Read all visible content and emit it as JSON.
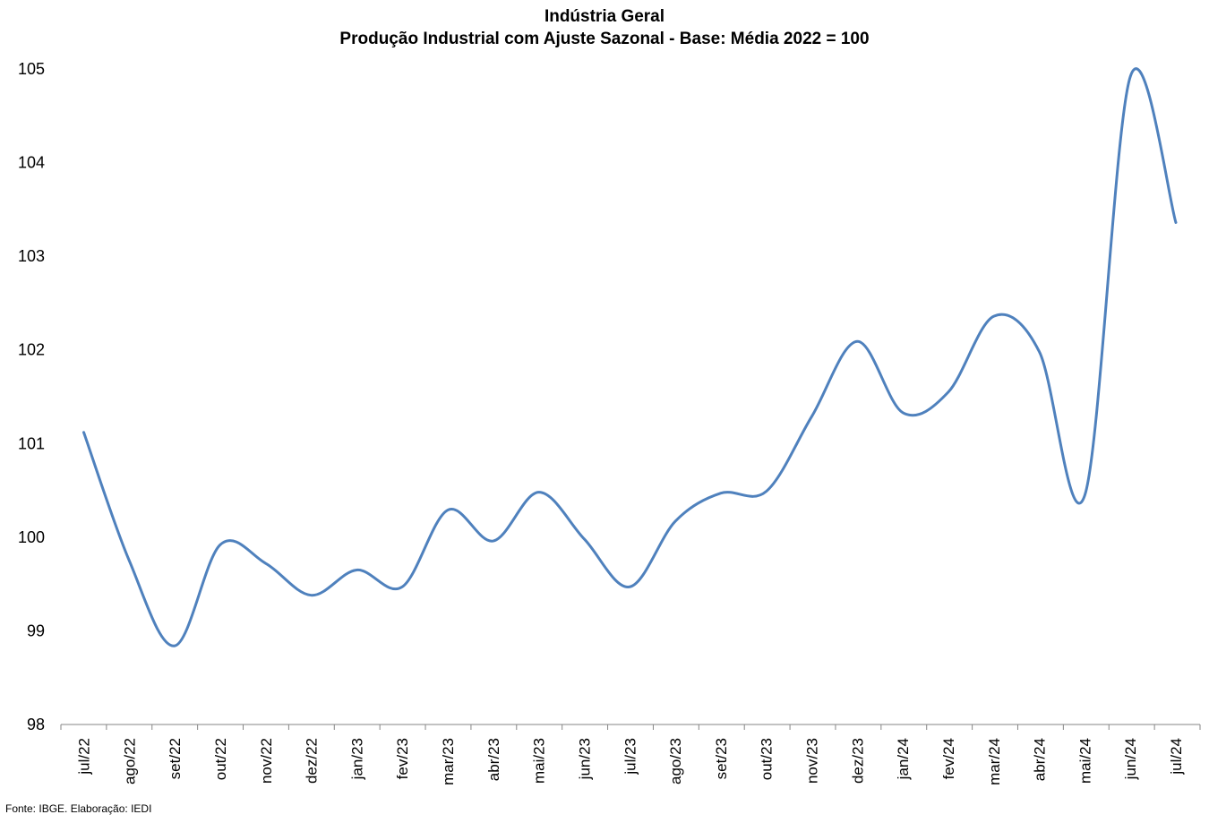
{
  "chart_data": {
    "type": "line",
    "title": "Indústria Geral",
    "subtitle": "Produção Industrial com Ajuste Sazonal - Base: Média 2022 = 100",
    "xlabel": "",
    "ylabel": "",
    "ylim": [
      98,
      105
    ],
    "yticks": [
      "98",
      "99",
      "100",
      "101",
      "102",
      "103",
      "104",
      "105"
    ],
    "grid": false,
    "legend": "none",
    "categories": [
      "jul/22",
      "ago/22",
      "set/22",
      "out/22",
      "nov/22",
      "dez/22",
      "jan/23",
      "fev/23",
      "mar/23",
      "abr/23",
      "mai/23",
      "jun/23",
      "jul/23",
      "ago/23",
      "set/23",
      "out/23",
      "nov/23",
      "dez/23",
      "jan/24",
      "fev/24",
      "mar/24",
      "abr/24",
      "mai/24",
      "jun/24",
      "jul/24"
    ],
    "series": [
      {
        "color": "#4f81bd",
        "values": [
          101.12,
          99.75,
          98.84,
          99.92,
          99.72,
          99.38,
          99.65,
          99.47,
          100.29,
          99.96,
          100.48,
          99.98,
          99.47,
          100.17,
          100.47,
          100.49,
          101.29,
          102.09,
          101.33,
          101.55,
          102.36,
          101.98,
          100.45,
          104.92,
          103.36
        ]
      }
    ]
  },
  "source_note": "Fonte: IBGE. Elaboração: IEDI"
}
